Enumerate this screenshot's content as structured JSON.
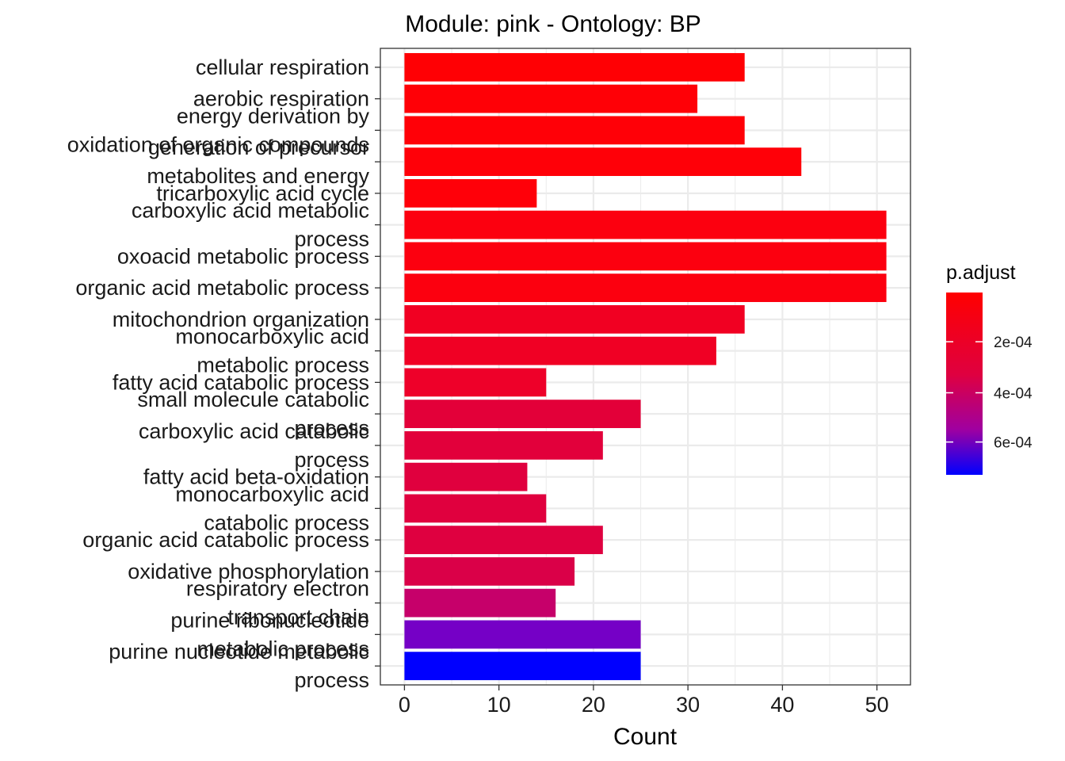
{
  "chart_data": {
    "type": "bar",
    "orientation": "horizontal",
    "title": "Module: pink - Ontology: BP",
    "xlabel": "Count",
    "ylabel": "",
    "xlim": [
      -2.55,
      53.55
    ],
    "xticks": [
      0,
      10,
      20,
      30,
      40,
      50
    ],
    "grid": true,
    "categories": [
      [
        "cellular respiration"
      ],
      [
        "aerobic respiration"
      ],
      [
        "energy derivation by",
        "oxidation of organic compounds"
      ],
      [
        "generation of precursor",
        "metabolites and energy"
      ],
      [
        "tricarboxylic acid cycle"
      ],
      [
        "carboxylic acid metabolic",
        "process"
      ],
      [
        "oxoacid metabolic process"
      ],
      [
        "organic acid metabolic process"
      ],
      [
        "mitochondrion organization"
      ],
      [
        "monocarboxylic acid",
        "metabolic process"
      ],
      [
        "fatty acid catabolic process"
      ],
      [
        "small molecule catabolic",
        "process"
      ],
      [
        "carboxylic acid catabolic",
        "process"
      ],
      [
        "fatty acid beta-oxidation"
      ],
      [
        "monocarboxylic acid",
        "catabolic process"
      ],
      [
        "organic acid catabolic process"
      ],
      [
        "oxidative phosphorylation"
      ],
      [
        "respiratory electron",
        "transport chain"
      ],
      [
        "purine ribonucleotide",
        "metabolic process"
      ],
      [
        "purine nucleotide metabolic",
        "process"
      ]
    ],
    "values": [
      36,
      31,
      36,
      42,
      14,
      51,
      51,
      51,
      36,
      33,
      15,
      25,
      21,
      13,
      15,
      21,
      18,
      16,
      25,
      25
    ],
    "colors": [
      "#FF0004",
      "#FF0006",
      "#FF0007",
      "#FF0008",
      "#FF0009",
      "#FC000F",
      "#FC000F",
      "#FC000F",
      "#F10022",
      "#F00024",
      "#EE0029",
      "#E30039",
      "#E2003B",
      "#E0003E",
      "#E0003E",
      "#DF0040",
      "#DA0048",
      "#C6006A",
      "#7500C6",
      "#0000FF"
    ],
    "legend": {
      "title": "p.adjust",
      "position": "right",
      "ticks": [
        "2e-04",
        "4e-04",
        "6e-04"
      ],
      "tick_fractions": [
        0.27,
        0.55,
        0.82
      ],
      "color_low": "#FF0000",
      "color_high": "#0000FF"
    }
  }
}
